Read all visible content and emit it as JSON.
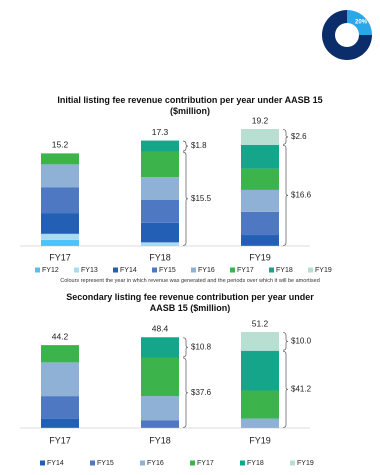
{
  "badge": {
    "label": "20%"
  },
  "chart_data": [
    {
      "type": "bar",
      "stacked": true,
      "title": "Initial listing fee revenue contribution per year under AASB 15 ($million)",
      "categories": [
        "FY17",
        "FY18",
        "FY19"
      ],
      "totals": [
        15.2,
        17.3,
        19.2
      ],
      "series": [
        {
          "name": "FY12",
          "color": "#4fc3f7",
          "values": [
            1.0,
            null,
            null
          ]
        },
        {
          "name": "FY13",
          "color": "#a9dcf3",
          "values": [
            1.0,
            0.6,
            null
          ]
        },
        {
          "name": "FY14",
          "color": "#2360b5",
          "values": [
            3.4,
            3.2,
            1.8
          ]
        },
        {
          "name": "FY15",
          "color": "#4f78c2",
          "values": [
            4.2,
            3.8,
            3.8
          ]
        },
        {
          "name": "FY16",
          "color": "#8fb1d6",
          "values": [
            3.8,
            3.7,
            3.6
          ]
        },
        {
          "name": "FY17",
          "color": "#3db44b",
          "values": [
            1.8,
            4.2,
            3.5
          ]
        },
        {
          "name": "FY18",
          "color": "#14a58a",
          "values": [
            null,
            1.8,
            3.9
          ]
        },
        {
          "name": "FY19",
          "color": "#b8dfd1",
          "values": [
            null,
            null,
            2.6
          ]
        }
      ],
      "annotations": [
        {
          "category": 1,
          "upper": "$1.8",
          "lower": "$15.5"
        },
        {
          "category": 2,
          "upper": "$2.6",
          "lower": "$16.6"
        }
      ],
      "note": "Colours represent the year in which revenue was generated and the periods over which it will be amortised"
    },
    {
      "type": "bar",
      "stacked": true,
      "title": "Secondary listing fee revenue contribution per year under AASB 15 ($million)",
      "categories": [
        "FY17",
        "FY18",
        "FY19"
      ],
      "totals": [
        44.2,
        48.4,
        51.2
      ],
      "series": [
        {
          "name": "FY14",
          "color": "#2360b5",
          "values": [
            5.0,
            null,
            null
          ]
        },
        {
          "name": "FY15",
          "color": "#4f78c2",
          "values": [
            12.0,
            4.0,
            null
          ]
        },
        {
          "name": "FY16",
          "color": "#8fb1d6",
          "values": [
            18.0,
            13.0,
            5.0
          ]
        },
        {
          "name": "FY17",
          "color": "#3db44b",
          "values": [
            9.2,
            20.6,
            15.0
          ]
        },
        {
          "name": "FY18",
          "color": "#14a58a",
          "values": [
            null,
            10.8,
            21.2
          ]
        },
        {
          "name": "FY19",
          "color": "#b8dfd1",
          "values": [
            null,
            null,
            10.0
          ]
        }
      ],
      "annotations": [
        {
          "category": 1,
          "upper": "$10.8",
          "lower": "$37.6"
        },
        {
          "category": 2,
          "upper": "$10.0",
          "lower": "$41.2"
        }
      ]
    }
  ]
}
